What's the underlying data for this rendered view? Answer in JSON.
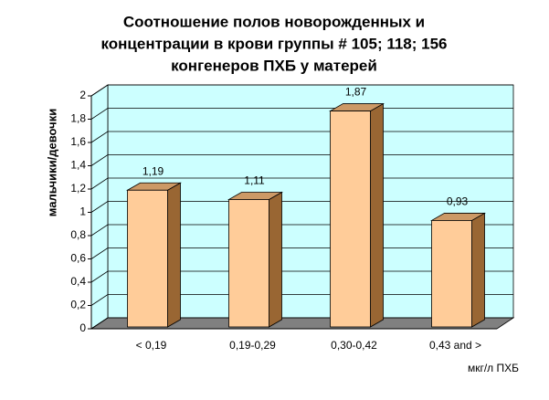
{
  "chart_data": {
    "type": "bar3d",
    "title": [
      "Соотношение полов новорожденных и",
      "концентрации в крови группы # 105; 118; 156",
      "конгенеров ПХБ у матерей"
    ],
    "y_label": "мальчики/девочки",
    "x_label": "мкг/л ПХБ",
    "categories": [
      "< 0,19",
      "0,19-0,29",
      "0,30-0,42",
      "0,43 and >"
    ],
    "values": [
      1.19,
      1.11,
      1.87,
      0.93
    ],
    "value_labels": [
      "1,19",
      "1,11",
      "1,87",
      "0,93"
    ],
    "color": "#ffcc99",
    "ylim": [
      0,
      2
    ],
    "yticks": [
      0,
      {
        "value": 0.2,
        "label": "0,2"
      },
      {
        "value": 0.4,
        "label": "0,4"
      },
      {
        "value": 0.6,
        "label": "0,6"
      },
      {
        "value": 0.8,
        "label": "0,8"
      },
      1,
      {
        "value": 1.2,
        "label": "1,2"
      },
      {
        "value": 1.4,
        "label": "1,4"
      },
      {
        "value": 1.6,
        "label": "1,6"
      },
      {
        "value": 1.8,
        "label": "1,8"
      },
      2
    ],
    "grid": true
  }
}
